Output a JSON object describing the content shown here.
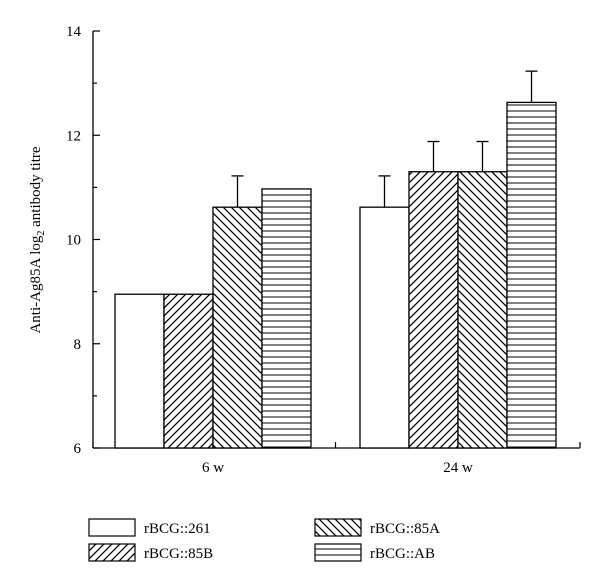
{
  "chart_data": {
    "type": "bar",
    "categories": [
      "6 w",
      "24 w"
    ],
    "ylabel": "Anti-Ag85A log",
    "ylabel_sub": "2",
    "ylabel_suffix": " antibody titre",
    "ylim": [
      6,
      14
    ],
    "yticks": [
      6,
      8,
      10,
      12,
      14
    ],
    "grid": false,
    "legend_position": "bottom",
    "series": [
      {
        "name": "rBCG::261",
        "pattern": "none",
        "values": [
          8.95,
          10.62
        ],
        "errors": [
          0,
          0.6
        ]
      },
      {
        "name": "rBCG::85B",
        "pattern": "diag-up",
        "values": [
          8.95,
          11.3
        ],
        "errors": [
          0,
          0.58
        ]
      },
      {
        "name": "rBCG::85A",
        "pattern": "diag-down",
        "values": [
          10.62,
          11.3
        ],
        "errors": [
          0.6,
          0.58
        ]
      },
      {
        "name": "rBCG::AB",
        "pattern": "horizontal",
        "values": [
          10.97,
          12.63
        ],
        "errors": [
          0,
          0.6
        ]
      }
    ]
  }
}
